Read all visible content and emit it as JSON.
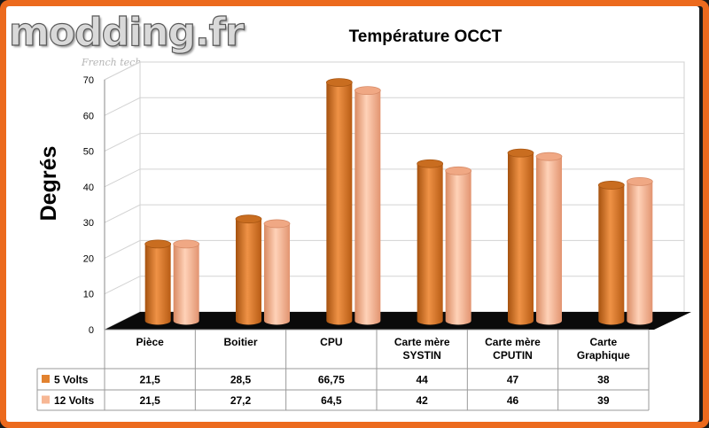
{
  "logo": {
    "text": "modding.fr",
    "tagline": "French tech..."
  },
  "chart_data": {
    "type": "bar",
    "title": "Température OCCT",
    "ylabel": "Degrés",
    "xlabel": "",
    "ylim": [
      0,
      70
    ],
    "yticks": [
      0,
      10,
      20,
      30,
      40,
      50,
      60,
      70
    ],
    "grid": true,
    "categories": [
      [
        "Pièce"
      ],
      [
        "Boitier"
      ],
      [
        "CPU"
      ],
      [
        "Carte mère",
        "SYSTIN"
      ],
      [
        "Carte mère",
        "CPUTIN"
      ],
      [
        "Carte",
        "Graphique"
      ]
    ],
    "series": [
      {
        "name": "5 Volts",
        "color": "#e2822f",
        "values": [
          21.5,
          28.5,
          66.75,
          44,
          47,
          38
        ],
        "labels": [
          "21,5",
          "28,5",
          "66,75",
          "44",
          "47",
          "38"
        ]
      },
      {
        "name": "12 Volts",
        "color": "#f7b794",
        "values": [
          21.5,
          27.2,
          64.5,
          42,
          46,
          39
        ],
        "labels": [
          "21,5",
          "27,2",
          "64,5",
          "42",
          "46",
          "39"
        ]
      }
    ]
  }
}
